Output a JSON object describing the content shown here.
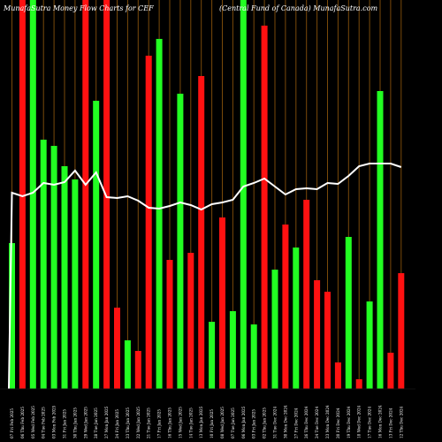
{
  "chart_data": {
    "type": "bar",
    "title_left": "MunafaSutra  Money Flow  Charts for CEF",
    "title_right": "(Central Fund                    of Canada) MunafaSutra.com",
    "categories": [
      "07 Fri Feb 2025",
      "06 Thu Feb 2025",
      "05 Wed Feb 2025",
      "04 Tue Feb 2025",
      "03 Mon Feb 2025",
      "31 Fri Jan 2025",
      "30 Thu Jan 2025",
      "29 Wed Jan 2025",
      "28 Tue Jan 2025",
      "27 Mon Jan 2025",
      "24 Fri Jan 2025",
      "23 Thu Jan 2025",
      "22 Wed Jan 2025",
      "21 Tue Jan 2025",
      "17 Fri Jan 2025",
      "16 Thu Jan 2025",
      "15 Wed Jan 2025",
      "14 Tue Jan 2025",
      "13 Mon Jan 2025",
      "10 Fri Jan 2025",
      "08 Wed Jan 2025",
      "07 Tue Jan 2025",
      "06 Mon Jan 2025",
      "03 Fri Jan 2025",
      "02 Thu Jan 2025",
      "31 Tue Dec 2024",
      "30 Mon Dec 2024",
      "27 Fri Dec 2024",
      "26 Thu Dec 2024",
      "24 Tue Dec 2024",
      "23 Mon Dec 2024",
      "20 Fri Dec 2024",
      "19 Thu Dec 2024",
      "18 Wed Dec 2024",
      "17 Tue Dec 2024",
      "16 Mon Dec 2024",
      "13 Fri Dec 2024",
      "12 Thu Dec 2024"
    ],
    "series": [
      {
        "values": [
          165,
          440,
          440,
          282,
          275,
          252,
          237,
          440,
          326,
          440,
          92,
          55,
          43,
          377,
          396,
          146,
          334,
          154,
          354,
          76,
          194,
          88,
          440,
          73,
          411,
          135,
          186,
          160,
          214,
          123,
          110,
          30,
          172,
          11,
          99,
          337,
          41,
          131
        ],
        "colors": [
          "green",
          "red",
          "green",
          "green",
          "green",
          "green",
          "green",
          "red",
          "green",
          "red",
          "red",
          "green",
          "red",
          "red",
          "green",
          "red",
          "green",
          "red",
          "red",
          "green",
          "red",
          "green",
          "green",
          "green",
          "red",
          "green",
          "red",
          "green",
          "red",
          "red",
          "red",
          "red",
          "green",
          "red",
          "green",
          "green",
          "red",
          "red"
        ]
      },
      {
        "type": "line",
        "values": [
          222,
          218,
          222,
          233,
          231,
          234,
          247,
          231,
          245,
          217,
          216,
          218,
          213,
          205,
          204,
          207,
          211,
          208,
          203,
          209,
          211,
          214,
          229,
          233,
          238,
          229,
          220,
          226,
          227,
          226,
          233,
          232,
          241,
          252,
          255,
          255,
          255,
          251
        ]
      }
    ],
    "colors": {
      "background": "#000000",
      "green": "#22ff22",
      "red": "#ff1111",
      "line": "#ffffff",
      "grid": "#7a4a0a"
    }
  }
}
